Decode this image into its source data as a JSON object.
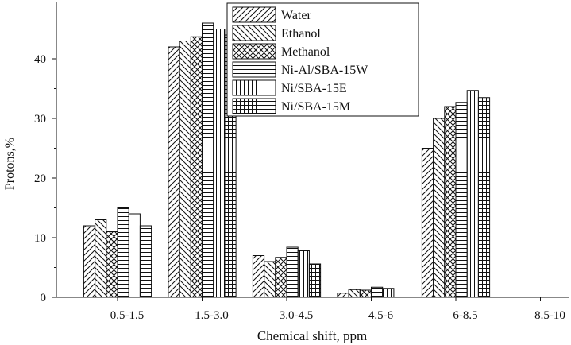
{
  "chart_data": {
    "type": "bar",
    "xlabel": "Chemical shift, ppm",
    "ylabel": "Protons,%",
    "ylim": [
      0,
      48
    ],
    "yticks": [
      0,
      10,
      20,
      30,
      40
    ],
    "grid": false,
    "legend_position": "top-center",
    "categories": [
      "0.5-1.5",
      "1.5-3.0",
      "3.0-4.5",
      "4.5-6",
      "6-8.5",
      "8.5-10"
    ],
    "series": [
      {
        "name": "Water",
        "pattern": "diag-up",
        "values": [
          12,
          42,
          7,
          0.7,
          25,
          0
        ]
      },
      {
        "name": "Ethanol",
        "pattern": "diag-down",
        "values": [
          13,
          43,
          6,
          1.3,
          30,
          0
        ]
      },
      {
        "name": "Methanol",
        "pattern": "cross",
        "values": [
          11,
          43.7,
          6.7,
          1.2,
          32,
          0
        ]
      },
      {
        "name": "Ni-Al/SBA-15W",
        "pattern": "horizontal",
        "values": [
          15,
          46,
          8.4,
          1.7,
          32.7,
          0
        ]
      },
      {
        "name": "Ni/SBA-15E",
        "pattern": "vertical",
        "values": [
          14,
          45,
          7.8,
          1.5,
          34.7,
          0
        ]
      },
      {
        "name": "Ni/SBA-15M",
        "pattern": "grid",
        "values": [
          12,
          44,
          5.6,
          0,
          33.5,
          0
        ]
      }
    ]
  }
}
